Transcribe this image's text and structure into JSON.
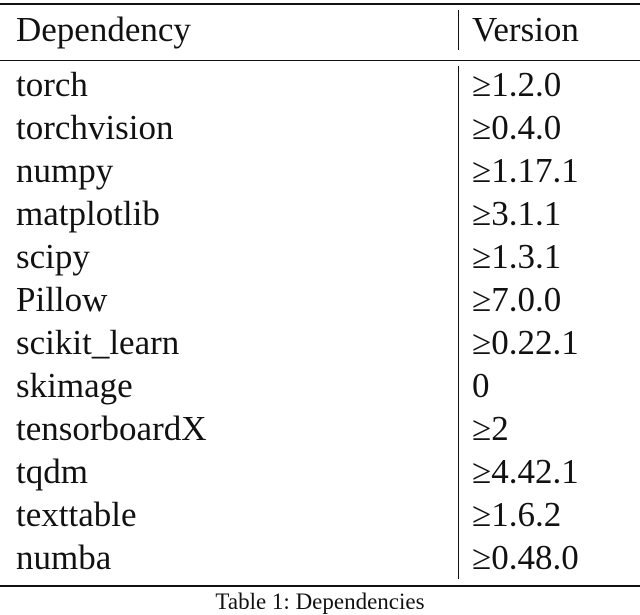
{
  "table": {
    "headers": {
      "dependency": "Dependency",
      "version": "Version"
    },
    "rows": [
      {
        "dependency": "torch",
        "version": "≥1.2.0"
      },
      {
        "dependency": "torchvision",
        "version": "≥0.4.0"
      },
      {
        "dependency": "numpy",
        "version": "≥1.17.1"
      },
      {
        "dependency": "matplotlib",
        "version": "≥3.1.1"
      },
      {
        "dependency": "scipy",
        "version": "≥1.3.1"
      },
      {
        "dependency": "Pillow",
        "version": "≥7.0.0"
      },
      {
        "dependency": "scikit_learn",
        "version": "≥0.22.1"
      },
      {
        "dependency": "skimage",
        "version": "0"
      },
      {
        "dependency": "tensorboardX",
        "version": "≥2"
      },
      {
        "dependency": "tqdm",
        "version": "≥4.42.1"
      },
      {
        "dependency": "texttable",
        "version": "≥1.6.2"
      },
      {
        "dependency": "numba",
        "version": "≥0.48.0"
      }
    ],
    "caption": "Table 1: Dependencies"
  }
}
